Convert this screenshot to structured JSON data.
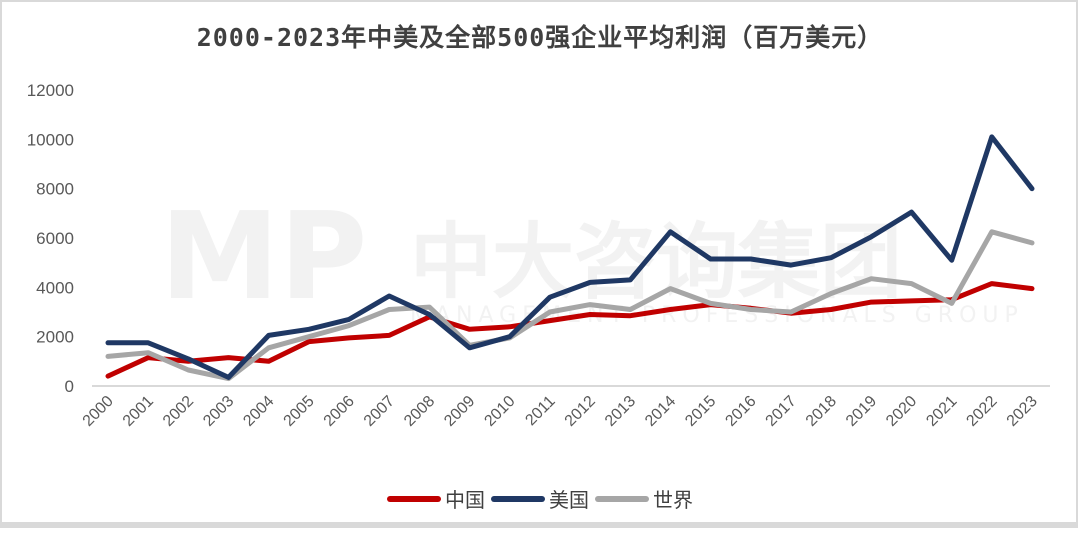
{
  "title": "2000-2023年中美及全部500强企业平均利润（百万美元）",
  "watermark": {
    "main": "中大咨询集团",
    "logo": "MP",
    "sub": "MANAGEMENT PROFESSIONALS GROUP"
  },
  "legend": [
    {
      "label": "中国",
      "color": "#c00000"
    },
    {
      "label": "美国",
      "color": "#1f3864"
    },
    {
      "label": "世界",
      "color": "#a6a6a6"
    }
  ],
  "chart_data": {
    "type": "line",
    "title": "2000-2023年中美及全部500强企业平均利润（百万美元）",
    "xlabel": "",
    "ylabel": "",
    "ylim": [
      0,
      12000
    ],
    "yticks": [
      0,
      2000,
      4000,
      6000,
      8000,
      10000,
      12000
    ],
    "grid": false,
    "legend_position": "bottom",
    "x": [
      "2000",
      "2001",
      "2002",
      "2003",
      "2004",
      "2005",
      "2006",
      "2007",
      "2008",
      "2009",
      "2010",
      "2011",
      "2012",
      "2013",
      "2014",
      "2015",
      "2016",
      "2017",
      "2018",
      "2019",
      "2020",
      "2021",
      "2022",
      "2023"
    ],
    "series": [
      {
        "name": "中国",
        "color": "#c00000",
        "values": [
          400,
          1150,
          1000,
          1150,
          1000,
          1800,
          1950,
          2050,
          2800,
          2300,
          2400,
          2650,
          2900,
          2850,
          3100,
          3300,
          3150,
          2950,
          3100,
          3400,
          3450,
          3500,
          4150,
          3950
        ]
      },
      {
        "name": "美国",
        "color": "#1f3864",
        "values": [
          1750,
          1750,
          1100,
          350,
          2050,
          2300,
          2700,
          3650,
          2900,
          1550,
          2000,
          3600,
          4200,
          4300,
          6250,
          5150,
          5150,
          4900,
          5200,
          6050,
          7050,
          5100,
          10100,
          8000
        ]
      },
      {
        "name": "世界",
        "color": "#a6a6a6",
        "values": [
          1200,
          1350,
          650,
          300,
          1550,
          2000,
          2450,
          3100,
          3200,
          1650,
          1950,
          3000,
          3300,
          3100,
          3950,
          3350,
          3100,
          3000,
          3750,
          4350,
          4150,
          3350,
          6250,
          5800
        ]
      }
    ]
  }
}
